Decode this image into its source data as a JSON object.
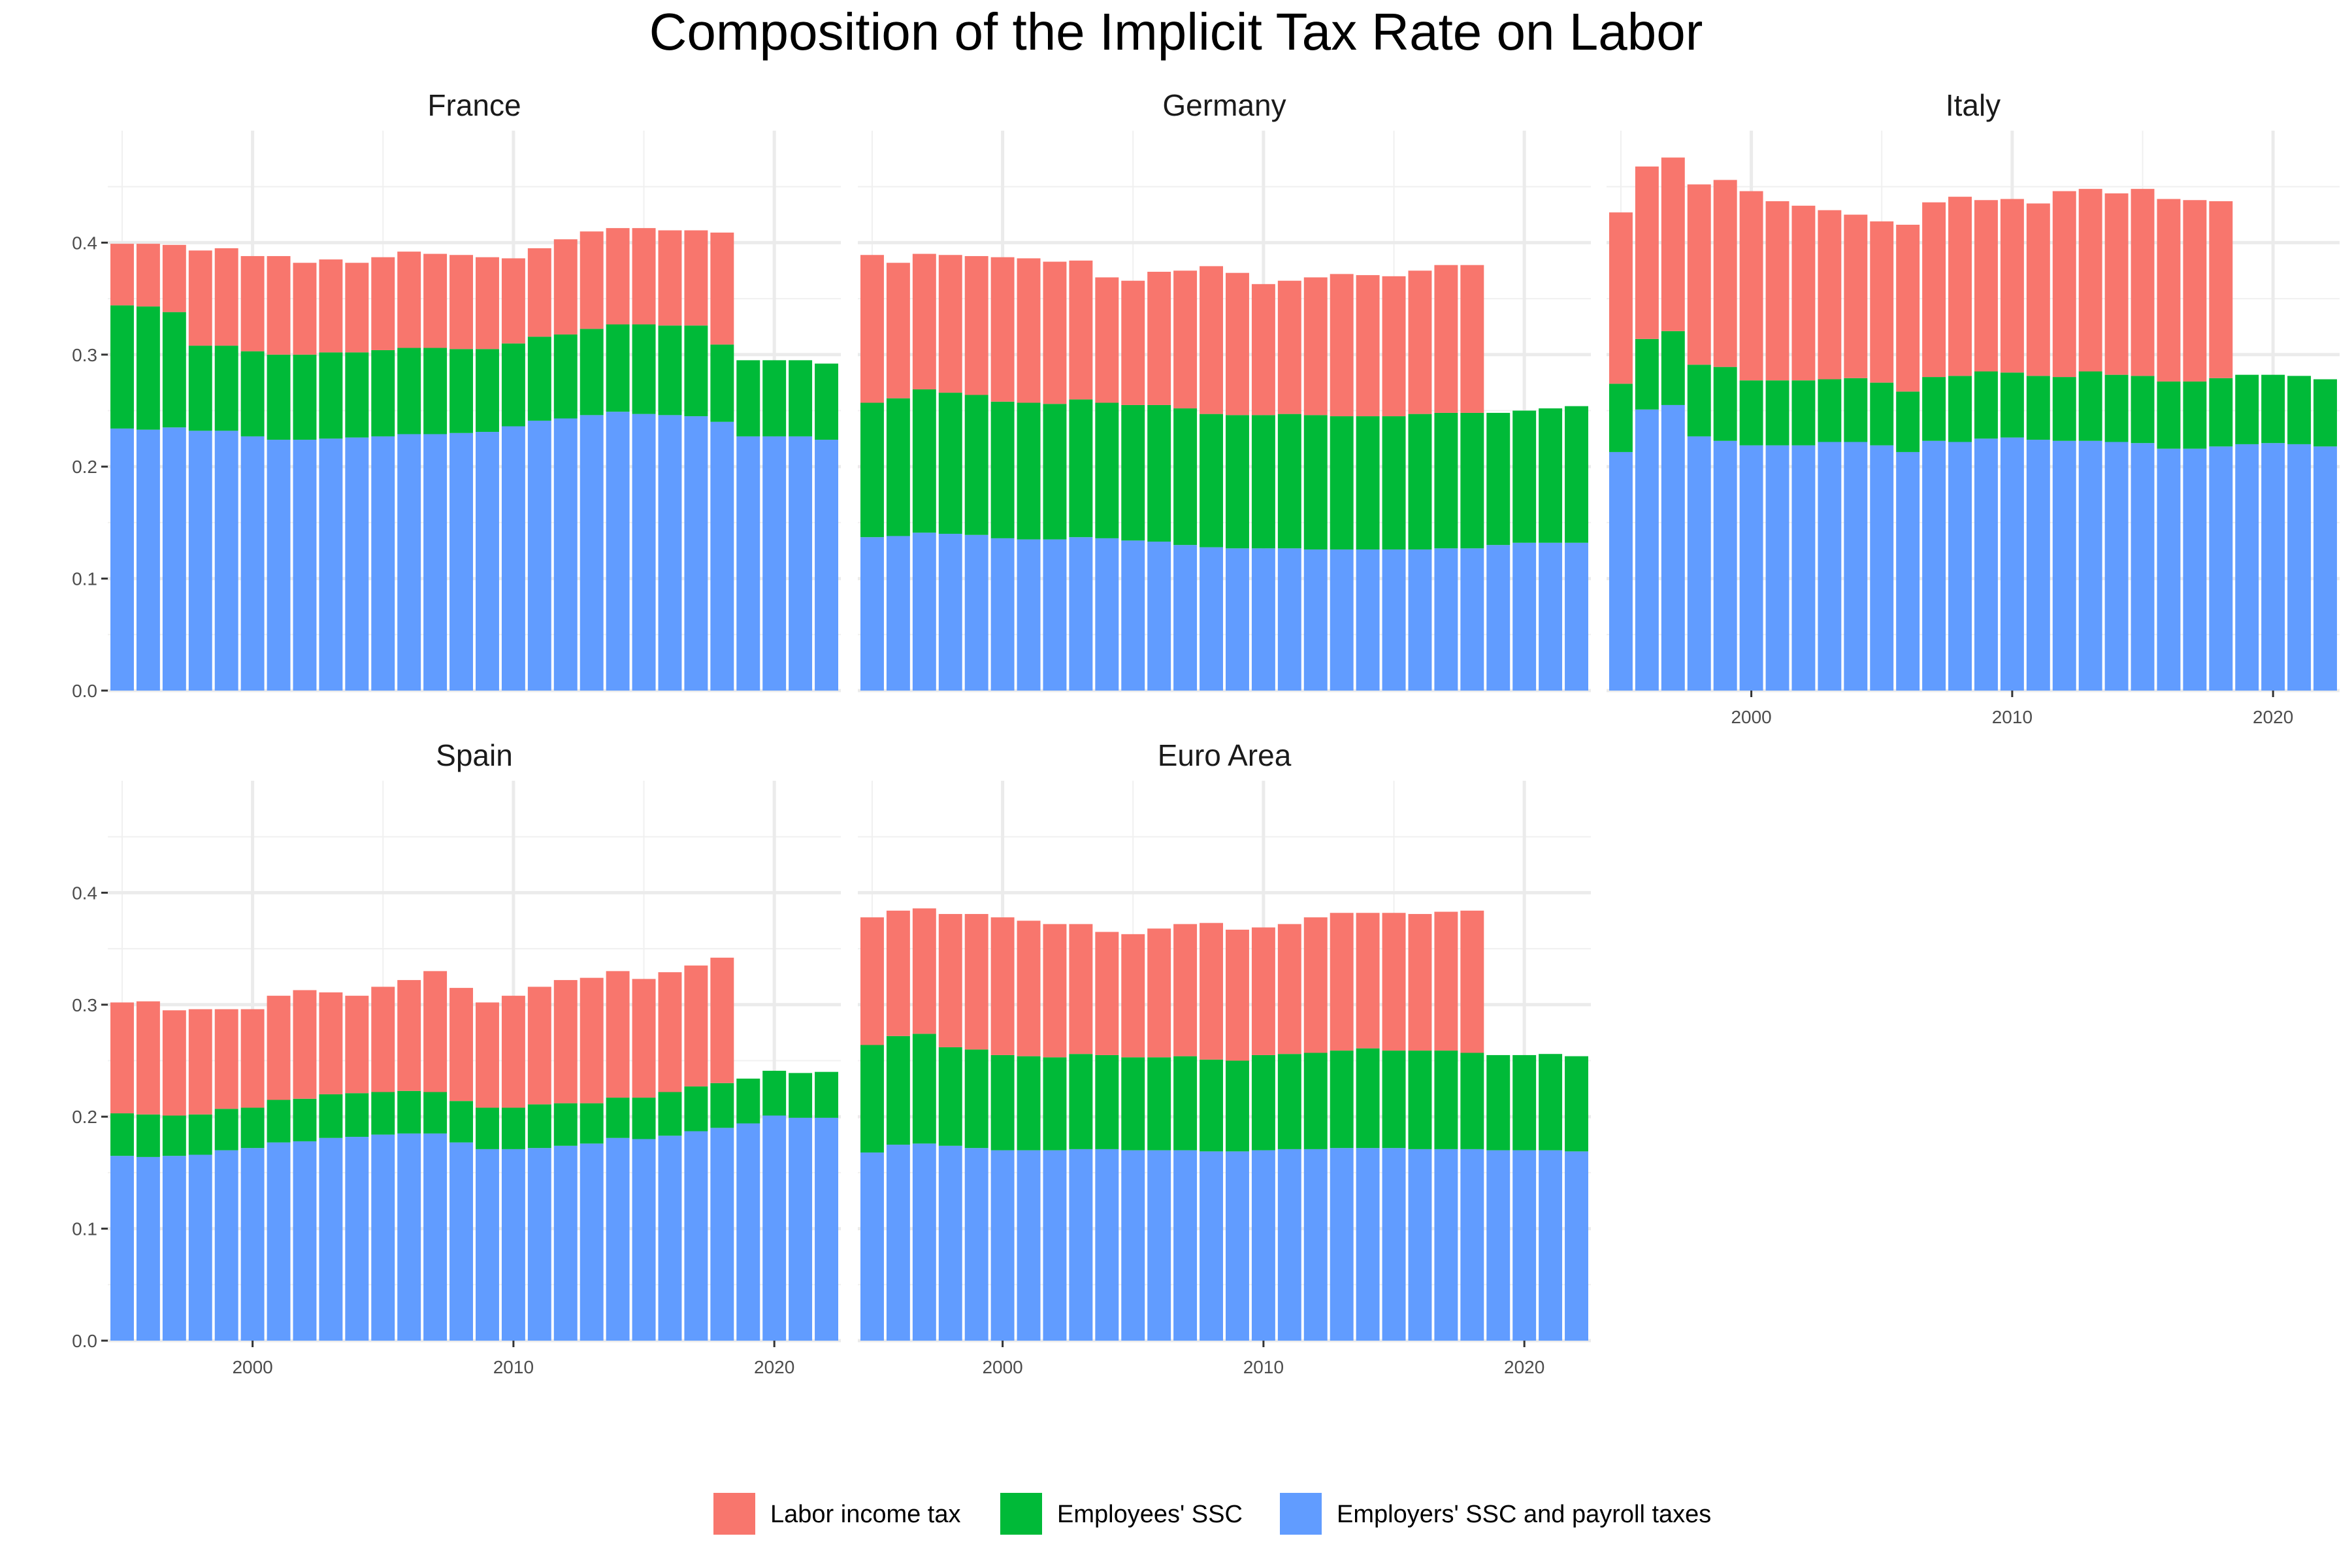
{
  "chart_data": {
    "type": "bar",
    "stacked": true,
    "title": "Composition of the Implicit Tax Rate on Labor",
    "x": [
      1995,
      1996,
      1997,
      1998,
      1999,
      2000,
      2001,
      2002,
      2003,
      2004,
      2005,
      2006,
      2007,
      2008,
      2009,
      2010,
      2011,
      2012,
      2013,
      2014,
      2015,
      2016,
      2017,
      2018,
      2019,
      2020,
      2021,
      2022
    ],
    "x_ticks": [
      "2000",
      "2010",
      "2020"
    ],
    "y_ticks": [
      "0.0",
      "0.1",
      "0.2",
      "0.3",
      "0.4"
    ],
    "ylim": [
      0,
      0.5
    ],
    "grid": true,
    "legend_position": "bottom",
    "legend": [
      {
        "name": "Labor income tax",
        "color": "#F8766D"
      },
      {
        "name": "Employees' SSC",
        "color": "#00BA38"
      },
      {
        "name": "Employers' SSC and payroll taxes",
        "color": "#619CFF"
      }
    ],
    "facets": [
      {
        "name": "France",
        "employers": [
          0.234,
          0.233,
          0.235,
          0.232,
          0.232,
          0.227,
          0.224,
          0.224,
          0.225,
          0.226,
          0.227,
          0.229,
          0.229,
          0.23,
          0.231,
          0.236,
          0.241,
          0.243,
          0.246,
          0.249,
          0.247,
          0.246,
          0.245,
          0.24,
          0.227,
          0.227,
          0.227,
          0.224
        ],
        "employees": [
          0.11,
          0.11,
          0.103,
          0.076,
          0.076,
          0.076,
          0.076,
          0.076,
          0.077,
          0.076,
          0.077,
          0.077,
          0.077,
          0.075,
          0.074,
          0.074,
          0.075,
          0.075,
          0.077,
          0.078,
          0.08,
          0.08,
          0.081,
          0.069,
          0.068,
          0.068,
          0.068,
          0.068
        ],
        "labor_tax": [
          0.055,
          0.056,
          0.06,
          0.085,
          0.087,
          0.085,
          0.088,
          0.082,
          0.083,
          0.08,
          0.083,
          0.086,
          0.084,
          0.084,
          0.082,
          0.076,
          0.079,
          0.085,
          0.087,
          0.086,
          0.086,
          0.085,
          0.085,
          0.1,
          null,
          null,
          null,
          null
        ]
      },
      {
        "name": "Germany",
        "employers": [
          0.137,
          0.138,
          0.141,
          0.14,
          0.139,
          0.136,
          0.135,
          0.135,
          0.137,
          0.136,
          0.134,
          0.133,
          0.13,
          0.128,
          0.127,
          0.127,
          0.127,
          0.126,
          0.126,
          0.126,
          0.126,
          0.126,
          0.127,
          0.127,
          0.13,
          0.132,
          0.132,
          0.132
        ],
        "employees": [
          0.12,
          0.123,
          0.128,
          0.126,
          0.125,
          0.122,
          0.122,
          0.121,
          0.123,
          0.121,
          0.121,
          0.122,
          0.122,
          0.119,
          0.119,
          0.119,
          0.12,
          0.12,
          0.119,
          0.119,
          0.119,
          0.121,
          0.121,
          0.121,
          0.118,
          0.118,
          0.12,
          0.122
        ],
        "labor_tax": [
          0.132,
          0.121,
          0.121,
          0.123,
          0.124,
          0.129,
          0.129,
          0.127,
          0.124,
          0.112,
          0.111,
          0.119,
          0.123,
          0.132,
          0.127,
          0.117,
          0.119,
          0.123,
          0.127,
          0.126,
          0.125,
          0.128,
          0.132,
          0.132,
          null,
          null,
          null,
          null
        ]
      },
      {
        "name": "Italy",
        "employers": [
          0.213,
          0.251,
          0.255,
          0.227,
          0.223,
          0.219,
          0.219,
          0.219,
          0.222,
          0.222,
          0.219,
          0.213,
          0.223,
          0.222,
          0.225,
          0.226,
          0.224,
          0.223,
          0.223,
          0.222,
          0.221,
          0.216,
          0.216,
          0.218,
          0.22,
          0.221,
          0.22,
          0.218
        ],
        "employees": [
          0.061,
          0.063,
          0.066,
          0.064,
          0.066,
          0.058,
          0.058,
          0.058,
          0.056,
          0.057,
          0.056,
          0.054,
          0.057,
          0.059,
          0.06,
          0.058,
          0.057,
          0.057,
          0.062,
          0.06,
          0.06,
          0.06,
          0.06,
          0.061,
          0.062,
          0.061,
          0.061,
          0.06
        ],
        "labor_tax": [
          0.153,
          0.154,
          0.155,
          0.161,
          0.167,
          0.169,
          0.16,
          0.156,
          0.151,
          0.146,
          0.144,
          0.149,
          0.156,
          0.16,
          0.153,
          0.155,
          0.154,
          0.166,
          0.163,
          0.162,
          0.167,
          0.163,
          0.162,
          0.158,
          null,
          null,
          null,
          null
        ]
      },
      {
        "name": "Spain",
        "employers": [
          0.165,
          0.164,
          0.165,
          0.166,
          0.17,
          0.172,
          0.177,
          0.178,
          0.181,
          0.182,
          0.184,
          0.185,
          0.185,
          0.177,
          0.171,
          0.171,
          0.172,
          0.174,
          0.176,
          0.181,
          0.18,
          0.183,
          0.187,
          0.19,
          0.194,
          0.201,
          0.199,
          0.199
        ],
        "employees": [
          0.038,
          0.038,
          0.036,
          0.036,
          0.037,
          0.036,
          0.038,
          0.038,
          0.039,
          0.039,
          0.038,
          0.038,
          0.037,
          0.037,
          0.037,
          0.037,
          0.039,
          0.038,
          0.036,
          0.036,
          0.037,
          0.039,
          0.04,
          0.04,
          0.04,
          0.04,
          0.04,
          0.041
        ],
        "labor_tax": [
          0.099,
          0.101,
          0.094,
          0.094,
          0.089,
          0.088,
          0.093,
          0.097,
          0.091,
          0.087,
          0.094,
          0.099,
          0.108,
          0.101,
          0.094,
          0.1,
          0.105,
          0.11,
          0.112,
          0.113,
          0.106,
          0.107,
          0.108,
          0.112,
          null,
          null,
          null,
          null
        ]
      },
      {
        "name": "Euro Area",
        "employers": [
          0.168,
          0.175,
          0.176,
          0.174,
          0.172,
          0.17,
          0.17,
          0.17,
          0.171,
          0.171,
          0.17,
          0.17,
          0.17,
          0.169,
          0.169,
          0.17,
          0.171,
          0.171,
          0.172,
          0.172,
          0.172,
          0.171,
          0.171,
          0.171,
          0.17,
          0.17,
          0.17,
          0.169
        ],
        "employees": [
          0.096,
          0.097,
          0.098,
          0.088,
          0.088,
          0.085,
          0.084,
          0.083,
          0.085,
          0.084,
          0.083,
          0.083,
          0.084,
          0.082,
          0.081,
          0.085,
          0.085,
          0.086,
          0.087,
          0.089,
          0.087,
          0.088,
          0.088,
          0.086,
          0.085,
          0.085,
          0.086,
          0.085
        ],
        "labor_tax": [
          0.114,
          0.112,
          0.112,
          0.119,
          0.121,
          0.123,
          0.121,
          0.119,
          0.116,
          0.11,
          0.11,
          0.115,
          0.118,
          0.122,
          0.117,
          0.114,
          0.116,
          0.121,
          0.123,
          0.121,
          0.123,
          0.122,
          0.124,
          0.127,
          null,
          null,
          null,
          null
        ]
      }
    ]
  }
}
